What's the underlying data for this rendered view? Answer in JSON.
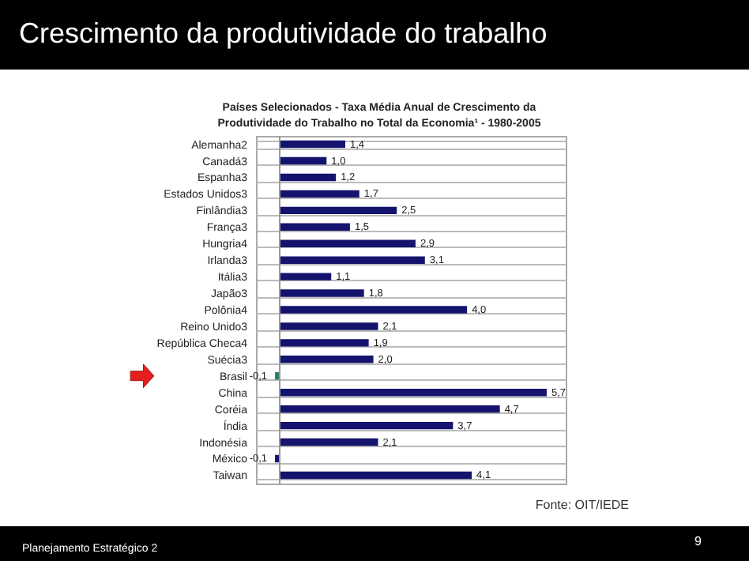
{
  "chart_data": {
    "type": "bar",
    "orientation": "horizontal",
    "title": "Crescimento da produtividade do trabalho",
    "subtitle": "Países Selecionados - Taxa Média Anual de Crescimento da Produtividade do Trabalho no Total da Economia¹ - 1980-2005",
    "categories": [
      "Alemanha2",
      "Canadá3",
      "Espanha3",
      "Estados Unidos3",
      "Finlândia3",
      "França3",
      "Hungria4",
      "Irlanda3",
      "Itália3",
      "Japão3",
      "Polônia4",
      "Reino Unido3",
      "República Checa4",
      "Suécia3",
      "Brasil",
      "China",
      "Coréia",
      "Índia",
      "Indonésia",
      "México",
      "Taiwan"
    ],
    "values": [
      1.4,
      1.0,
      1.2,
      1.7,
      2.5,
      1.5,
      2.9,
      3.1,
      1.1,
      1.8,
      4.0,
      2.1,
      1.9,
      2.0,
      -0.1,
      5.7,
      4.7,
      3.7,
      2.1,
      -0.1,
      4.1
    ],
    "value_labels": [
      "1,4",
      "1,0",
      "1,2",
      "1,7",
      "2,5",
      "1,5",
      "2,9",
      "3,1",
      "1,1",
      "1,8",
      "4,0",
      "2,1",
      "1,9",
      "2,0",
      "-0,1",
      "5,7",
      "4,7",
      "3,7",
      "2,1",
      "-0,1",
      "4,1"
    ],
    "colors": [
      "#14146e",
      "#14146e",
      "#14146e",
      "#14146e",
      "#14146e",
      "#14146e",
      "#14146e",
      "#14146e",
      "#14146e",
      "#14146e",
      "#14146e",
      "#14146e",
      "#14146e",
      "#14146e",
      "#2e7d5b",
      "#14146e",
      "#14146e",
      "#14146e",
      "#14146e",
      "#14146e",
      "#14146e"
    ],
    "grid": "y",
    "annotations": [
      "Fonte: OIT/IEDE",
      "Planejamento Estratégico 2",
      "9"
    ]
  }
}
